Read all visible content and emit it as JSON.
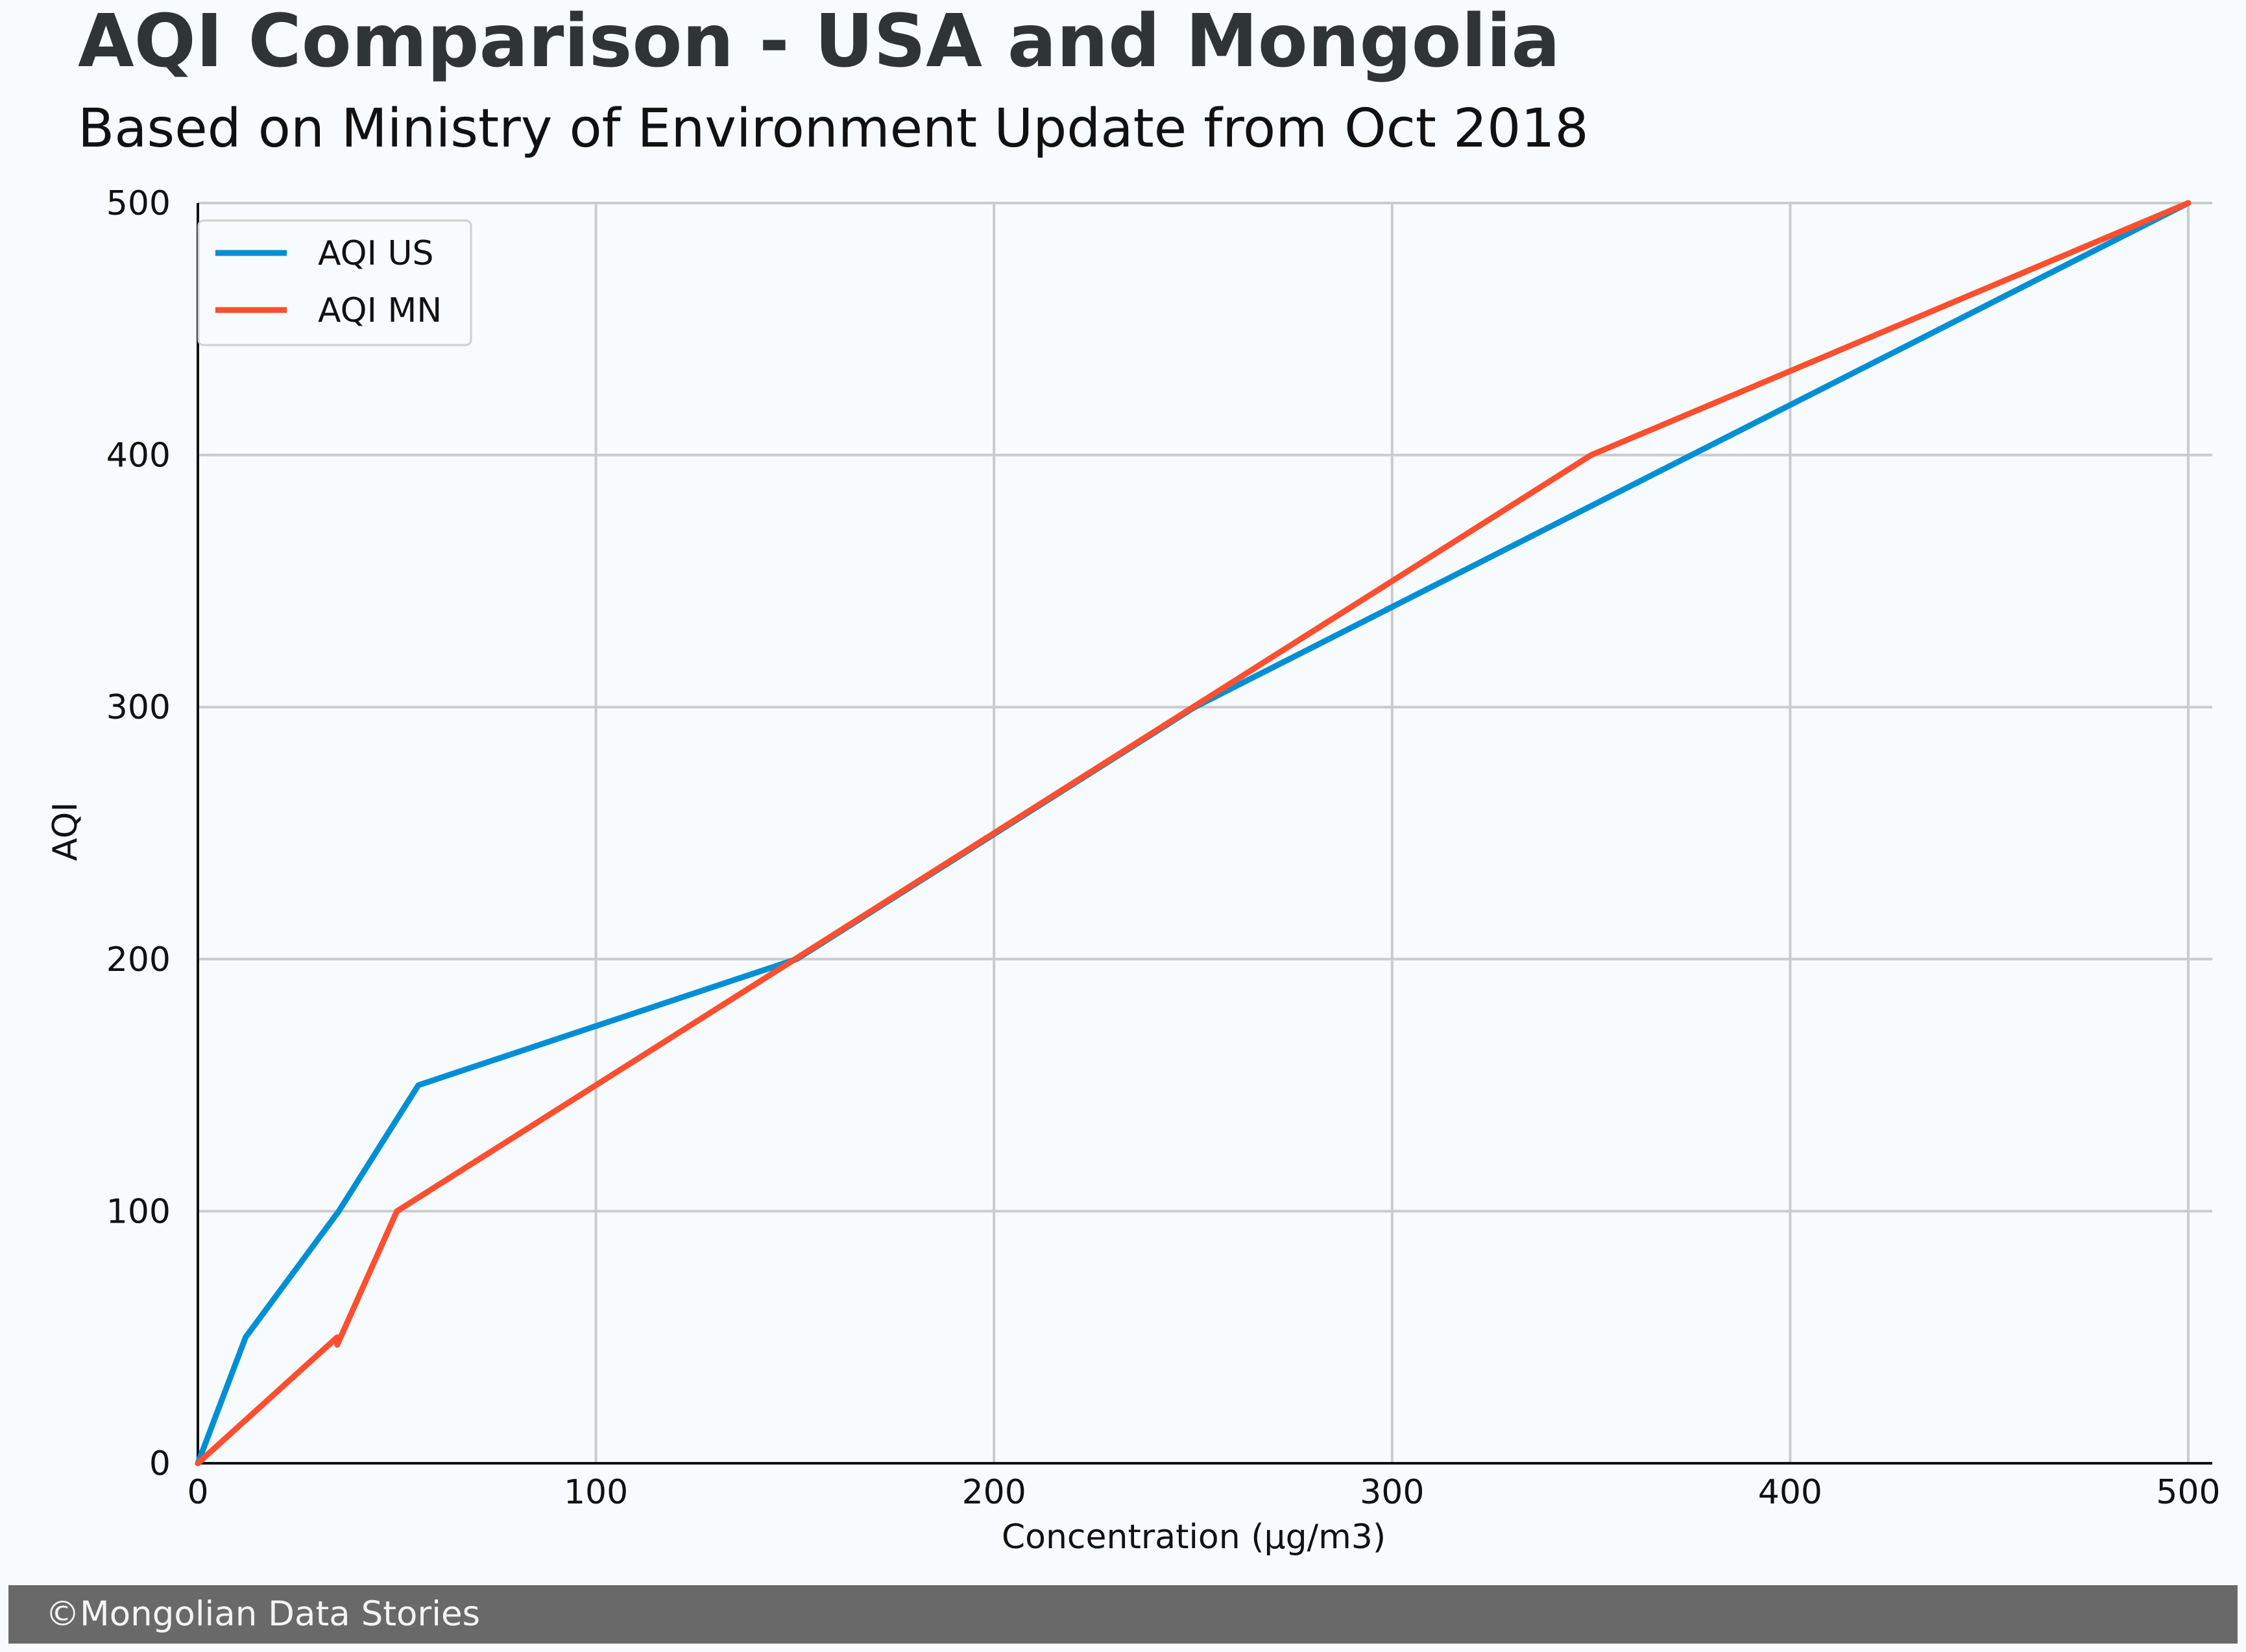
{
  "chart_data": {
    "type": "line",
    "title": "AQI Comparison - USA and Mongolia",
    "subtitle": "Based on Ministry of Environment Update from Oct 2018",
    "xlabel": "Concentration (µg/m3)",
    "ylabel": "AQI",
    "xlim": [
      0,
      500
    ],
    "ylim": [
      0,
      500
    ],
    "xticks": [
      0,
      100,
      200,
      300,
      400,
      500
    ],
    "yticks": [
      0,
      100,
      200,
      300,
      400,
      500
    ],
    "xtick_labels": [
      "0",
      "100",
      "200",
      "300",
      "400",
      "500"
    ],
    "ytick_labels": [
      "0",
      "100",
      "200",
      "300",
      "400",
      "500"
    ],
    "grid": true,
    "legend_position": "top-left",
    "series": [
      {
        "name": "AQI US",
        "color": "#008fd5",
        "x": [
          0,
          12,
          35.4,
          55.4,
          150.4,
          250.4,
          500
        ],
        "y": [
          0,
          50,
          100,
          150,
          200,
          300,
          500
        ]
      },
      {
        "name": "AQI MN",
        "color": "#fc4f30",
        "x": [
          0,
          35,
          35,
          50,
          150,
          250,
          350,
          500
        ],
        "y": [
          0,
          50,
          47,
          100,
          200,
          300,
          400,
          500
        ]
      }
    ]
  },
  "footer": {
    "text": "©Mongolian Data Stories"
  }
}
